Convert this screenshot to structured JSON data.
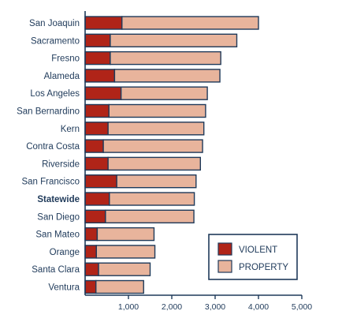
{
  "chart_data": {
    "type": "bar",
    "orientation": "horizontal",
    "stacked": true,
    "title": "",
    "xlabel": "",
    "ylabel": "",
    "xlim": [
      0,
      5000
    ],
    "x_ticks": [
      1000,
      2000,
      3000,
      4000,
      5000
    ],
    "x_tick_labels": [
      "1,000",
      "2,000",
      "3,000",
      "4,000",
      "5,000"
    ],
    "grid": false,
    "legend_position": "bottom-right",
    "highlighted_category": "Statewide",
    "categories": [
      "San Joaquin",
      "Sacramento",
      "Fresno",
      "Alameda",
      "Los Angeles",
      "San Bernardino",
      "Kern",
      "Contra Costa",
      "Riverside",
      "San Francisco",
      "Statewide",
      "San Diego",
      "San Mateo",
      "Orange",
      "Santa Clara",
      "Ventura"
    ],
    "series": [
      {
        "name": "VIOLENT",
        "color": "#b02418",
        "values": [
          850,
          580,
          580,
          680,
          830,
          550,
          530,
          420,
          530,
          730,
          560,
          470,
          280,
          260,
          310,
          250
        ]
      },
      {
        "name": "PROPERTY",
        "color": "#e8b49c",
        "values": [
          3150,
          2920,
          2550,
          2430,
          1990,
          2230,
          2210,
          2290,
          2130,
          1830,
          1960,
          2040,
          1310,
          1350,
          1190,
          1100
        ]
      }
    ],
    "colors": {
      "axis": "#1f3a5a",
      "bar_outline": "#1f3a5a"
    }
  }
}
